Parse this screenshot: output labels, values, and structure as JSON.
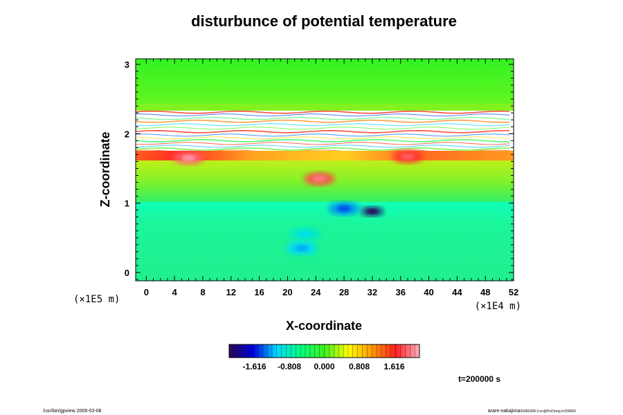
{
  "chart_data": {
    "type": "heatmap",
    "title": "disturbunce of potential temperature",
    "xlabel": "X-coordinate",
    "ylabel": "Z-coordinate",
    "x_unit": "(×1E4 m)",
    "y_unit": "(×1E5 m)",
    "xlim": [
      -1.5,
      52
    ],
    "ylim": [
      -0.12,
      3.08
    ],
    "x_ticks": [
      0,
      4,
      8,
      12,
      16,
      20,
      24,
      28,
      32,
      36,
      40,
      44,
      48,
      52
    ],
    "y_ticks": [
      0,
      1,
      2,
      3
    ],
    "colorbar": {
      "ticks": [
        -1.616,
        -0.808,
        0.0,
        0.808,
        1.616
      ],
      "tick_labels": [
        "-1.616",
        "-0.808",
        "0.000",
        "0.808",
        "1.616"
      ],
      "range": [
        -2.2,
        2.2
      ],
      "colors": [
        "#2a0a55",
        "#0000e0",
        "#00d8ff",
        "#00ff80",
        "#40f020",
        "#ffff00",
        "#ff9a00",
        "#ff2020",
        "#ffb0c0"
      ]
    },
    "time_label": "t=200000 s",
    "field_bands": [
      {
        "z": [
          2.6,
          3.08
        ],
        "value": 0.25
      },
      {
        "z": [
          2.3,
          2.6
        ],
        "value": 0.5
      },
      {
        "z": [
          1.72,
          2.3
        ],
        "value": 0.0,
        "note": "layered, blank"
      },
      {
        "z": [
          1.55,
          1.72
        ],
        "value": 1.5
      },
      {
        "z": [
          1.0,
          1.55
        ],
        "value": 0.45
      },
      {
        "z": [
          -0.12,
          0.95
        ],
        "value": -0.15
      }
    ],
    "features": [
      {
        "x": 32,
        "z": 0.88,
        "value": -2.1
      },
      {
        "x": 28,
        "z": 0.92,
        "value": -1.3
      },
      {
        "x": 24.5,
        "z": 1.35,
        "value": 1.8
      },
      {
        "x": 22.5,
        "z": 0.55,
        "value": -0.9
      },
      {
        "x": 22,
        "z": 0.35,
        "value": -1.1
      },
      {
        "x": 6,
        "z": 1.65,
        "value": 1.9
      },
      {
        "x": 37,
        "z": 1.67,
        "value": 1.7
      }
    ]
  },
  "footer": {
    "left": "/usr/bin/gpview 2006-03-08",
    "right": "arare-nakajima",
    "right_small": "20060308-3.nc@PotTemp,t=200000"
  }
}
